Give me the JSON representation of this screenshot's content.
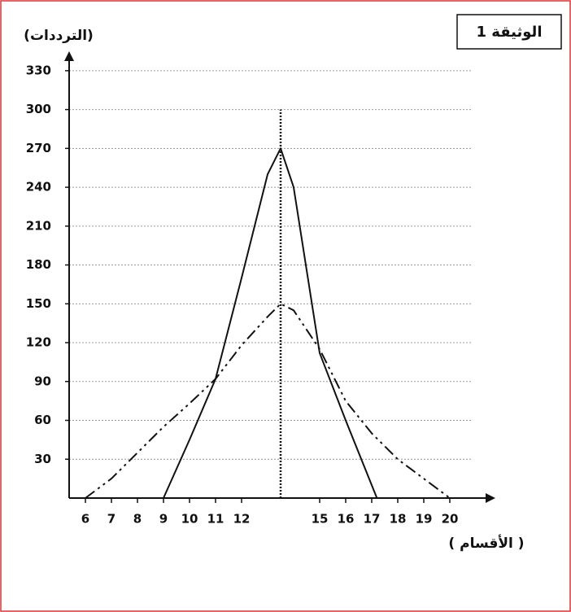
{
  "chart_data": {
    "type": "line",
    "title": "الوثيقة 1",
    "y_label": "(الترددات)",
    "x_label": "( الأقسام )",
    "xlim": [
      5,
      21
    ],
    "xticks": [
      6,
      7,
      8,
      9,
      10,
      11,
      12,
      15,
      16,
      17,
      18,
      19,
      20
    ],
    "ylim": [
      0,
      345
    ],
    "yticks": [
      30,
      60,
      90,
      120,
      150,
      180,
      210,
      240,
      270,
      300,
      330
    ],
    "grid": true,
    "reference_line": {
      "x": 13.5,
      "y": 300
    },
    "series": [
      {
        "color": "#111111",
        "style": "solid",
        "x": [
          9,
          10,
          11,
          12,
          13,
          13.5,
          14,
          15,
          16,
          17.2
        ],
        "values": [
          0,
          45,
          92,
          170,
          250,
          270,
          240,
          112,
          60,
          0
        ]
      },
      {
        "color": "#111111",
        "style": "dashdot",
        "x": [
          6,
          7,
          8,
          9,
          10,
          11,
          12,
          13,
          13.5,
          14,
          15,
          16,
          17,
          18,
          19,
          20
        ],
        "values": [
          0,
          15,
          35,
          55,
          73,
          92,
          118,
          140,
          150,
          145,
          115,
          75,
          50,
          30,
          15,
          0
        ]
      }
    ]
  }
}
